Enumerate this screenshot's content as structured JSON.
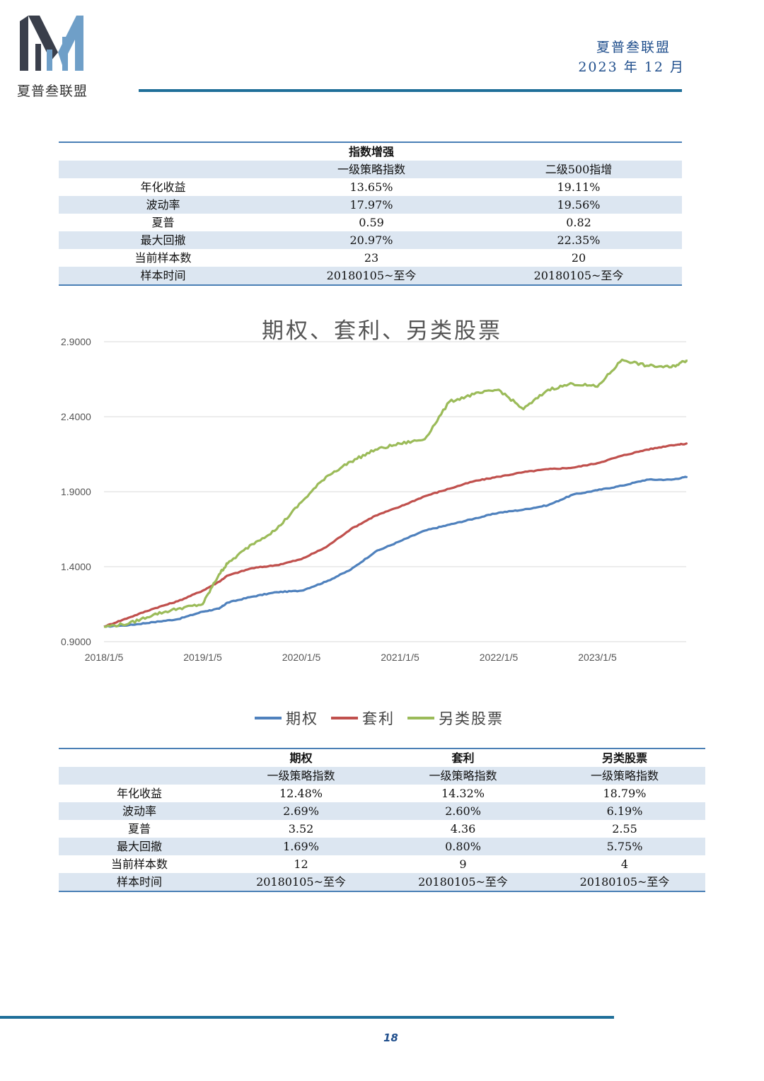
{
  "header": {
    "brand": "夏普叁联盟",
    "org": "夏普叁联盟",
    "date": "2023 年 12 月",
    "brand_colors": [
      "#3a3f4b",
      "#6f9fc8",
      "#1f6f99"
    ]
  },
  "table1": {
    "title": "指数增强",
    "columns": [
      "",
      "一级策略指数",
      "二级500指增"
    ],
    "rows": [
      [
        "年化收益",
        "13.65%",
        "19.11%"
      ],
      [
        "波动率",
        "17.97%",
        "19.56%"
      ],
      [
        "夏普",
        "0.59",
        "0.82"
      ],
      [
        "最大回撤",
        "20.97%",
        "22.35%"
      ],
      [
        "当前样本数",
        "23",
        "20"
      ],
      [
        "样本时间",
        "20180105~至今",
        "20180105~至今"
      ]
    ]
  },
  "chart_data": {
    "type": "line",
    "title": "期权、套利、另类股票",
    "ylim": [
      0.9,
      2.9
    ],
    "y_ticks": [
      "0.9000",
      "1.4000",
      "1.9000",
      "2.4000",
      "2.9000"
    ],
    "x_ticks": [
      "2018/1/5",
      "2019/1/5",
      "2020/1/5",
      "2021/1/5",
      "2022/1/5",
      "2023/1/5"
    ],
    "grid": true,
    "legend_position": "bottom",
    "x": [
      "2018-01",
      "2018-04",
      "2018-07",
      "2018-10",
      "2019-01",
      "2019-03",
      "2019-04",
      "2019-07",
      "2019-10",
      "2020-01",
      "2020-04",
      "2020-07",
      "2020-10",
      "2021-01",
      "2021-04",
      "2021-07",
      "2021-10",
      "2022-01",
      "2022-04",
      "2022-07",
      "2022-10",
      "2023-01",
      "2023-04",
      "2023-07",
      "2023-10",
      "2023-12"
    ],
    "series": [
      {
        "name": "期权",
        "color": "#4f81bd",
        "values": [
          1.0,
          1.01,
          1.03,
          1.05,
          1.1,
          1.12,
          1.16,
          1.2,
          1.23,
          1.24,
          1.3,
          1.38,
          1.5,
          1.57,
          1.64,
          1.68,
          1.72,
          1.76,
          1.78,
          1.81,
          1.88,
          1.91,
          1.94,
          1.98,
          1.98,
          2.0
        ]
      },
      {
        "name": "套利",
        "color": "#c0504d",
        "values": [
          1.0,
          1.06,
          1.12,
          1.17,
          1.24,
          1.3,
          1.34,
          1.39,
          1.41,
          1.45,
          1.53,
          1.65,
          1.74,
          1.8,
          1.87,
          1.92,
          1.97,
          2.0,
          2.03,
          2.05,
          2.06,
          2.09,
          2.14,
          2.18,
          2.21,
          2.22
        ]
      },
      {
        "name": "另类股票",
        "color": "#9bbb59",
        "values": [
          1.0,
          1.02,
          1.08,
          1.12,
          1.15,
          1.35,
          1.42,
          1.55,
          1.65,
          1.83,
          2.0,
          2.1,
          2.18,
          2.22,
          2.25,
          2.5,
          2.55,
          2.58,
          2.45,
          2.58,
          2.62,
          2.6,
          2.78,
          2.74,
          2.73,
          2.78
        ]
      }
    ]
  },
  "table2": {
    "columns": [
      "",
      "期权",
      "套利",
      "另类股票"
    ],
    "subheader": [
      "",
      "一级策略指数",
      "一级策略指数",
      "一级策略指数"
    ],
    "rows": [
      [
        "年化收益",
        "12.48%",
        "14.32%",
        "18.79%"
      ],
      [
        "波动率",
        "2.69%",
        "2.60%",
        "6.19%"
      ],
      [
        "夏普",
        "3.52",
        "4.36",
        "2.55"
      ],
      [
        "最大回撤",
        "1.69%",
        "0.80%",
        "5.75%"
      ],
      [
        "当前样本数",
        "12",
        "9",
        "4"
      ],
      [
        "样本时间",
        "20180105~至今",
        "20180105~至今",
        "20180105~至今"
      ]
    ]
  },
  "footer": {
    "page": "18"
  }
}
